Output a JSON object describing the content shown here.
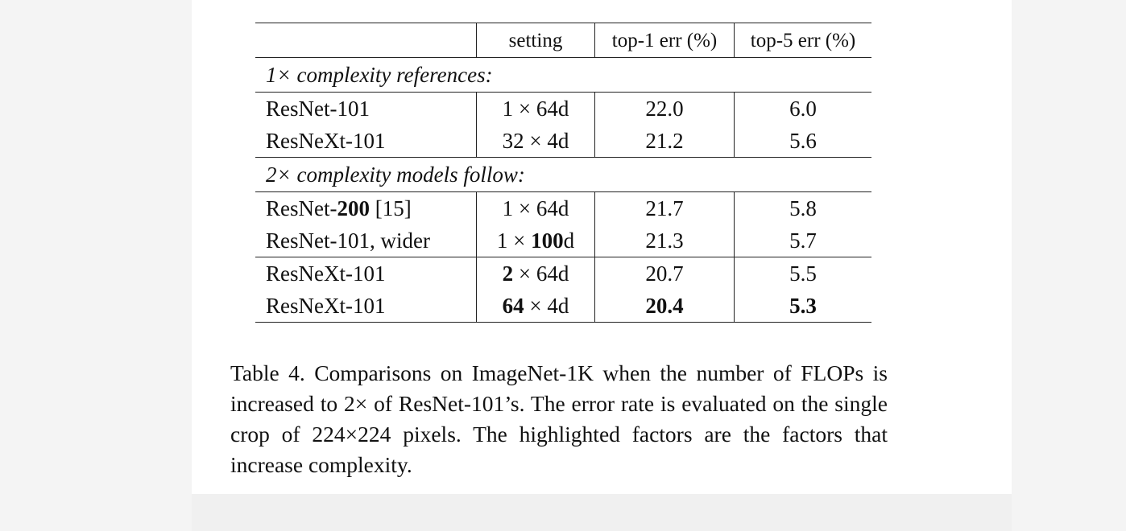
{
  "table": {
    "headers": [
      "",
      "setting",
      "top-1 err (%)",
      "top-5 err (%)"
    ],
    "group1_label": "1× complexity references:",
    "group2_label": "2× complexity models follow:",
    "rows": [
      {
        "model": "ResNet-101",
        "setting": "1 × 64d",
        "top1": "22.0",
        "top5": "6.0"
      },
      {
        "model": "ResNeXt-101",
        "setting": "32 × 4d",
        "top1": "21.2",
        "top5": "5.6"
      },
      {
        "model_prefix": "ResNet-",
        "model_bold": "200",
        "model_suffix": " [15]",
        "setting": "1 × 64d",
        "top1": "21.7",
        "top5": "5.8"
      },
      {
        "model": "ResNet-101, wider",
        "setting_prefix": "1 × ",
        "setting_bold": "100",
        "setting_suffix": "d",
        "top1": "21.3",
        "top5": "5.7"
      },
      {
        "model": "ResNeXt-101",
        "setting_bold": "2",
        "setting_suffix": " × 64d",
        "top1": "20.7",
        "top5": "5.5"
      },
      {
        "model": "ResNeXt-101",
        "setting_bold": "64",
        "setting_suffix": " × 4d",
        "top1": "20.4",
        "top5": "5.3"
      }
    ]
  },
  "caption": "Table 4. Comparisons on ImageNet-1K when the number of FLOPs is increased to 2× of ResNet-101’s. The error rate is evaluated on the single crop of 224×224 pixels. The highlighted factors are the factors that increase complexity."
}
